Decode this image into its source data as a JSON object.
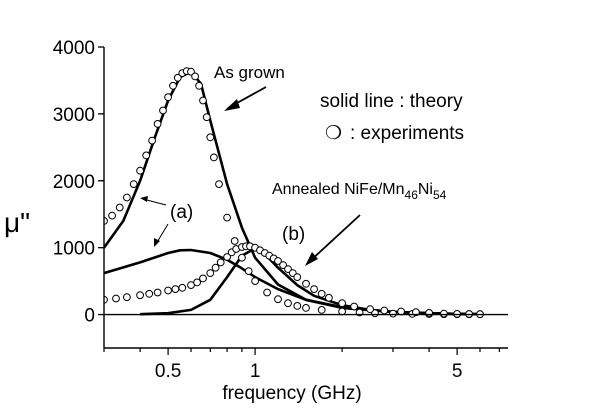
{
  "chart_data": {
    "type": "line",
    "title": "",
    "xlabel": "frequency (GHz)",
    "ylabel": "μ\"",
    "x_scale": "log",
    "xlim": [
      0.3,
      7.5
    ],
    "ylim": [
      -500,
      4000
    ],
    "x_ticks": [
      0.5,
      1,
      5
    ],
    "x_tick_labels": [
      "0.5",
      "1",
      "5"
    ],
    "y_ticks": [
      0,
      1000,
      2000,
      3000,
      4000
    ],
    "y_tick_labels": [
      "0",
      "1000",
      "2000",
      "3000",
      "4000"
    ],
    "grid": false,
    "series": [
      {
        "kind": "theory-line",
        "x": [
          0.3,
          0.35,
          0.4,
          0.45,
          0.5,
          0.55,
          0.6,
          0.65,
          0.7,
          0.8,
          0.9,
          1.0,
          1.2,
          1.5,
          2.0,
          3.0,
          4.0,
          5.0,
          6.0
        ],
        "values": [
          1000,
          1400,
          2000,
          2650,
          3200,
          3550,
          3630,
          3450,
          2900,
          1950,
          1300,
          850,
          450,
          220,
          100,
          40,
          20,
          10,
          5
        ]
      },
      {
        "kind": "theory-line",
        "x": [
          0.3,
          0.4,
          0.5,
          0.55,
          0.6,
          0.7,
          0.8,
          0.9,
          1.0,
          1.2,
          1.5,
          2.0,
          3.0,
          4.0,
          5.0,
          6.0
        ],
        "values": [
          620,
          780,
          920,
          960,
          965,
          920,
          820,
          690,
          560,
          380,
          220,
          110,
          40,
          20,
          10,
          5
        ]
      },
      {
        "kind": "theory-line",
        "x": [
          0.4,
          0.5,
          0.6,
          0.7,
          0.8,
          0.9,
          1.0,
          1.1,
          1.2,
          1.4,
          1.6,
          2.0,
          2.5,
          3.0,
          4.0,
          5.0,
          6.0
        ],
        "values": [
          5,
          20,
          70,
          220,
          560,
          880,
          990,
          870,
          700,
          440,
          280,
          140,
          70,
          40,
          20,
          10,
          5
        ]
      },
      {
        "kind": "experiment-points",
        "x": [
          0.3,
          0.32,
          0.34,
          0.36,
          0.38,
          0.4,
          0.42,
          0.44,
          0.46,
          0.48,
          0.5,
          0.52,
          0.54,
          0.56,
          0.58,
          0.6,
          0.62,
          0.64,
          0.66,
          0.68,
          0.7,
          0.72,
          0.75,
          0.8,
          0.85,
          0.9,
          0.95,
          1.0,
          1.1,
          1.2,
          1.3,
          1.4,
          1.5,
          1.7,
          2.0,
          2.3,
          2.6,
          3.0,
          3.5,
          4.0,
          4.5,
          5.0,
          5.5,
          6.0
        ],
        "values": [
          1400,
          1480,
          1600,
          1750,
          1950,
          2150,
          2380,
          2600,
          2850,
          3050,
          3250,
          3420,
          3540,
          3610,
          3640,
          3630,
          3560,
          3420,
          3200,
          2950,
          2650,
          2350,
          1950,
          1450,
          1100,
          850,
          650,
          500,
          330,
          230,
          170,
          130,
          100,
          70,
          45,
          30,
          20,
          15,
          10,
          8,
          5,
          5,
          5,
          5
        ]
      },
      {
        "kind": "experiment-points",
        "x": [
          0.3,
          0.33,
          0.36,
          0.4,
          0.43,
          0.46,
          0.5,
          0.53,
          0.56,
          0.6,
          0.63,
          0.66,
          0.7,
          0.73,
          0.76,
          0.8,
          0.83,
          0.86,
          0.9,
          0.93,
          0.96,
          1.0,
          1.04,
          1.08,
          1.12,
          1.16,
          1.2,
          1.25,
          1.3,
          1.35,
          1.4,
          1.5,
          1.6,
          1.7,
          1.8,
          2.0,
          2.2,
          2.5,
          2.8,
          3.2,
          3.6,
          4.0,
          4.5,
          5.0,
          5.5,
          6.0
        ],
        "values": [
          220,
          240,
          260,
          290,
          310,
          330,
          360,
          380,
          400,
          440,
          480,
          540,
          620,
          700,
          780,
          860,
          930,
          980,
          1010,
          1020,
          1020,
          1000,
          960,
          920,
          880,
          840,
          800,
          740,
          680,
          620,
          560,
          460,
          380,
          310,
          250,
          170,
          120,
          80,
          60,
          45,
          35,
          25,
          15,
          10,
          8,
          5
        ]
      }
    ],
    "annotations": {
      "as_grown": "As grown",
      "legend_line": "solid line : theory",
      "legend_marker": "❍",
      "legend_points": ": experiments",
      "annealed_prefix": "Annealed NiFe/Mn",
      "annealed_sub1": "46",
      "annealed_mid": "Ni",
      "annealed_sub2": "54",
      "label_a": "(a)",
      "label_b": "(b)"
    }
  }
}
